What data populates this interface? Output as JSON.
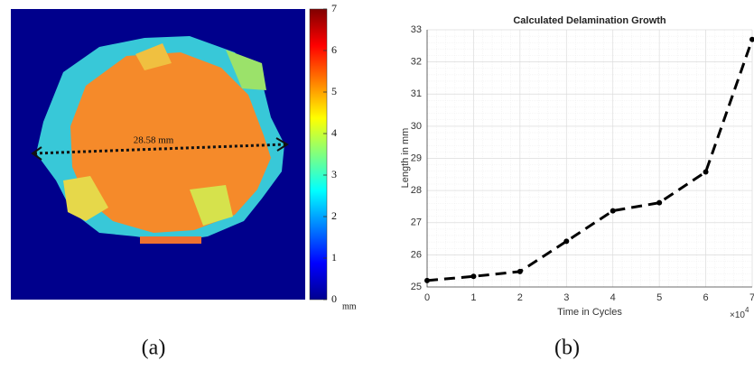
{
  "chart_data": [
    {
      "type": "heatmap-image",
      "caption": "(a)",
      "annotation": "28.58 mm",
      "colorbar": {
        "lim": [
          0,
          7
        ],
        "ticks": [
          0,
          1,
          2,
          3,
          4,
          5,
          6,
          7
        ],
        "unit": "mm"
      }
    },
    {
      "type": "line",
      "title": "Calculated Delamination Growth",
      "caption": "(b)",
      "xlabel": "Time in Cycles",
      "ylabel": "Length in mm",
      "x_scale_label": {
        "base": "×10",
        "exponent": "4"
      },
      "x": [
        0,
        1,
        2,
        3,
        4,
        5,
        6,
        7
      ],
      "values": [
        25.2,
        25.33,
        25.48,
        26.42,
        27.37,
        27.62,
        28.58,
        32.7
      ],
      "color": "#000000",
      "xlim": [
        0,
        7
      ],
      "xticks": [
        0,
        1,
        2,
        3,
        4,
        5,
        6,
        7
      ],
      "ylim": [
        25,
        33
      ],
      "yticks": [
        25,
        26,
        27,
        28,
        29,
        30,
        31,
        32,
        33
      ],
      "grid": true,
      "minor_grid": true
    }
  ]
}
